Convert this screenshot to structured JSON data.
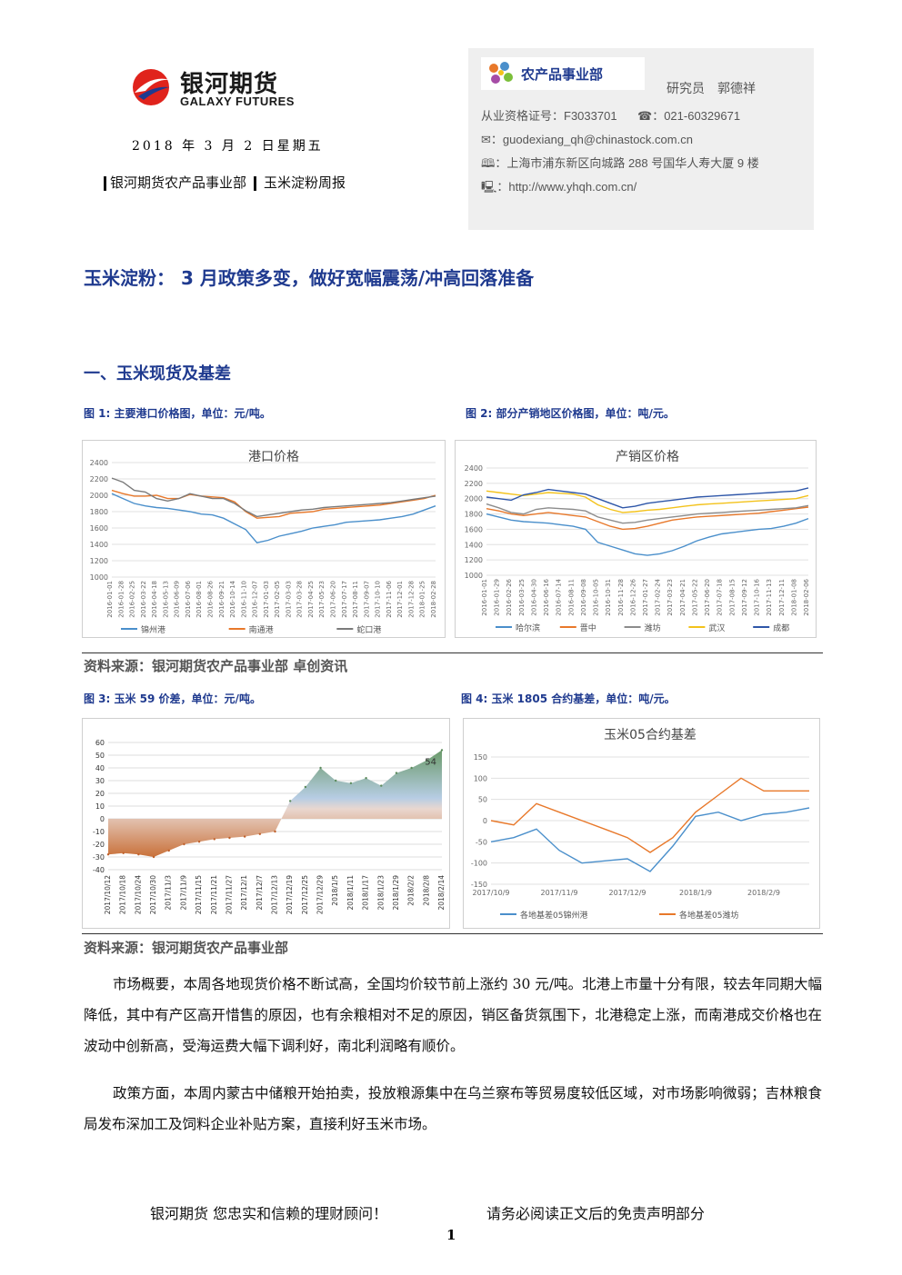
{
  "header": {
    "logo_cn": "银河期货",
    "logo_en": "GALAXY FUTURES",
    "date": "2018 年 3 月 2 日星期五",
    "dept": "银河期货农产品事业部",
    "report": "玉米淀粉周报"
  },
  "contact": {
    "dept_badge": "农产品事业部",
    "researcher": "研究员　郭德祥",
    "license": "从业资格证号：F3033701",
    "phone": "☎：021-60329671",
    "email": "✉：guodexiang_qh@chinastock.com.cn",
    "address": "🕮：上海市浦东新区向城路 288 号国华人寿大厦 9 楼",
    "website": "🖳：http://www.yhqh.com.cn/"
  },
  "title": "玉米淀粉：  3 月政策多变，做好宽幅震荡/冲高回落准备",
  "section1": "一、玉米现货及基差",
  "figures": {
    "fig1_caption": "图 1:  主要港口价格图，单位：元/吨。",
    "fig2_caption": "图 2:  部分产销地区价格图，单位：吨/元。",
    "fig3_caption": "图 3:  玉米 59 价差，单位：元/吨。",
    "fig4_caption": "图 4:  玉米 1805 合约基差，单位：吨/元。",
    "source1": "资料来源：银河期货农产品事业部  卓创资讯",
    "source2": "资料来源：银河期货农产品事业部"
  },
  "paragraphs": {
    "p1": "市场概要，本周各地现货价格不断试高，全国均价较节前上涨约 30 元/吨。北港上市量十分有限，较去年同期大幅降低，其中有产区高开惜售的原因，也有余粮相对不足的原因，销区备货氛围下，北港稳定上涨，而南港成交价格也在波动中创新高，受海运费大幅下调利好，南北利润略有顺价。",
    "p2": "政策方面，本周内蒙古中储粮开始拍卖，投放粮源集中在乌兰察布等贸易度较低区域，对市场影响微弱；吉林粮食局发布深加工及饲料企业补贴方案，直接利好玉米市场。"
  },
  "footer": {
    "slogan": "银河期货  您忠实和信赖的理财顾问！",
    "disclaimer": "请务必阅读正文后的免责声明部分",
    "page": "1"
  },
  "colors": {
    "title_blue": "#1f3a8f",
    "series_blue": "#4a8fcb",
    "series_orange": "#e8782a",
    "series_gray": "#8c8c8c",
    "series_yellow": "#f3c21b",
    "series_navy": "#2e56a8"
  },
  "chart_data": [
    {
      "type": "line",
      "title": "港口价格",
      "ylim": [
        1000,
        2400
      ],
      "yticks": [
        1000,
        1200,
        1400,
        1600,
        1800,
        2000,
        2200,
        2400
      ],
      "x": [
        "2016-01-01",
        "2016-01-28",
        "2016-02-25",
        "2016-03-22",
        "2016-04-18",
        "2016-05-13",
        "2016-06-09",
        "2016-07-06",
        "2016-08-01",
        "2016-08-26",
        "2016-09-21",
        "2016-10-14",
        "2016-11-10",
        "2016-12-07",
        "2017-01-03",
        "2017-02-05",
        "2017-03-03",
        "2017-03-28",
        "2017-04-25",
        "2017-05-23",
        "2017-06-20",
        "2017-07-17",
        "2017-08-11",
        "2017-09-07",
        "2017-10-10",
        "2017-11-06",
        "2017-12-01",
        "2017-12-28",
        "2018-01-25",
        "2018-02-28"
      ],
      "series": [
        {
          "name": "锦州港",
          "color": "#4a8fcb",
          "values": [
            2020,
            1960,
            1900,
            1870,
            1850,
            1840,
            1820,
            1800,
            1770,
            1760,
            1720,
            1650,
            1580,
            1420,
            1450,
            1500,
            1530,
            1560,
            1600,
            1620,
            1640,
            1670,
            1680,
            1690,
            1700,
            1720,
            1740,
            1770,
            1820,
            1870
          ]
        },
        {
          "name": "南通港",
          "color": "#e8782a",
          "values": [
            2060,
            2020,
            1990,
            1990,
            2000,
            1960,
            1960,
            2010,
            1990,
            1980,
            1970,
            1920,
            1800,
            1720,
            1730,
            1740,
            1780,
            1790,
            1800,
            1830,
            1840,
            1850,
            1860,
            1870,
            1880,
            1900,
            1920,
            1940,
            1960,
            2000
          ]
        },
        {
          "name": "蛇口港",
          "color": "#7a7a7a",
          "values": [
            2210,
            2160,
            2060,
            2040,
            1960,
            1930,
            1960,
            2020,
            1990,
            1960,
            1960,
            1900,
            1810,
            1740,
            1760,
            1780,
            1800,
            1820,
            1830,
            1850,
            1860,
            1870,
            1880,
            1890,
            1900,
            1910,
            1930,
            1950,
            1970,
            1990
          ]
        }
      ]
    },
    {
      "type": "line",
      "title": "产销区价格",
      "ylim": [
        1000,
        2400
      ],
      "yticks": [
        1000,
        1200,
        1400,
        1600,
        1800,
        2000,
        2200,
        2400
      ],
      "x": [
        "2016-01-01",
        "2016-01-29",
        "2016-02-26",
        "2016-03-25",
        "2016-04-30",
        "2016-06-16",
        "2016-07-14",
        "2016-08-11",
        "2016-09-08",
        "2016-10-05",
        "2016-10-31",
        "2016-11-28",
        "2016-12-26",
        "2017-01-27",
        "2017-02-24",
        "2017-03-23",
        "2017-04-21",
        "2017-05-22",
        "2017-06-20",
        "2017-07-18",
        "2017-08-15",
        "2017-09-12",
        "2017-10-16",
        "2017-11-13",
        "2017-12-11",
        "2018-01-08",
        "2018-02-06"
      ],
      "series": [
        {
          "name": "哈尔滨",
          "color": "#4a8fcb",
          "values": [
            1800,
            1760,
            1720,
            1700,
            1690,
            1680,
            1660,
            1640,
            1600,
            1430,
            1380,
            1330,
            1280,
            1260,
            1280,
            1320,
            1380,
            1450,
            1500,
            1540,
            1560,
            1580,
            1600,
            1610,
            1640,
            1680,
            1740
          ]
        },
        {
          "name": "晋中",
          "color": "#e8782a",
          "values": [
            1870,
            1840,
            1800,
            1780,
            1800,
            1820,
            1800,
            1780,
            1760,
            1700,
            1640,
            1600,
            1610,
            1640,
            1680,
            1720,
            1740,
            1760,
            1770,
            1780,
            1790,
            1800,
            1810,
            1830,
            1850,
            1870,
            1890
          ]
        },
        {
          "name": "潍坊",
          "color": "#8c8c8c",
          "values": [
            1930,
            1880,
            1820,
            1800,
            1860,
            1880,
            1870,
            1860,
            1840,
            1760,
            1720,
            1680,
            1690,
            1720,
            1740,
            1760,
            1780,
            1800,
            1810,
            1820,
            1830,
            1840,
            1850,
            1860,
            1870,
            1880,
            1910
          ]
        },
        {
          "name": "武汉",
          "color": "#f3c21b",
          "values": [
            2100,
            2080,
            2060,
            2040,
            2060,
            2080,
            2070,
            2060,
            2020,
            1920,
            1860,
            1820,
            1830,
            1850,
            1860,
            1880,
            1900,
            1920,
            1930,
            1940,
            1950,
            1960,
            1970,
            1980,
            1990,
            2000,
            2040
          ]
        },
        {
          "name": "成都",
          "color": "#2e56a8",
          "values": [
            2020,
            2000,
            1980,
            2050,
            2080,
            2120,
            2100,
            2080,
            2060,
            2000,
            1940,
            1880,
            1900,
            1940,
            1960,
            1980,
            2000,
            2020,
            2030,
            2040,
            2050,
            2060,
            2070,
            2080,
            2090,
            2100,
            2140
          ]
        }
      ]
    },
    {
      "type": "area",
      "title": "",
      "ylim": [
        -40,
        60
      ],
      "yticks": [
        -40,
        -30,
        -20,
        -10,
        0,
        10,
        20,
        30,
        40,
        50,
        60
      ],
      "x": [
        "2017/10/12",
        "2017/10/18",
        "2017/10/24",
        "2017/10/30",
        "2017/11/3",
        "2017/11/9",
        "2017/11/15",
        "2017/11/21",
        "2017/11/27",
        "2017/12/1",
        "2017/12/7",
        "2017/12/13",
        "2017/12/19",
        "2017/12/25",
        "2017/12/29",
        "2018/1/5",
        "2018/1/11",
        "2018/1/17",
        "2018/1/23",
        "2018/1/29",
        "2018/2/2",
        "2018/2/8",
        "2018/2/14"
      ],
      "values": [
        -28,
        -27,
        -28,
        -30,
        -25,
        -20,
        -18,
        -16,
        -15,
        -14,
        -12,
        -10,
        14,
        25,
        40,
        30,
        28,
        32,
        26,
        36,
        40,
        46,
        54
      ],
      "data_label": "54",
      "series": [
        {
          "values": [
            -28,
            -27,
            -28,
            -30,
            -25,
            -20,
            -18,
            -16,
            -15,
            -14,
            -12,
            -10,
            14,
            25,
            40,
            30,
            28,
            32,
            26,
            36,
            40,
            46,
            54
          ]
        }
      ]
    },
    {
      "type": "line",
      "title": "玉米05合约基差",
      "ylim": [
        -150,
        150
      ],
      "yticks": [
        -150,
        -100,
        -50,
        0,
        50,
        100,
        150
      ],
      "x": [
        "2017/10/9",
        "2017/10/19",
        "2017/10/29",
        "2017/11/9",
        "2017/11/19",
        "2017/11/29",
        "2017/12/9",
        "2017/12/19",
        "2017/12/29",
        "2018/1/9",
        "2018/1/19",
        "2018/1/29",
        "2018/2/9",
        "2018/2/19",
        "2018/2/28"
      ],
      "xticks": [
        "2017/10/9",
        "2017/11/9",
        "2017/12/9",
        "2018/1/9",
        "2018/2/9"
      ],
      "series": [
        {
          "name": "各地基差05锦州港",
          "color": "#4a8fcb",
          "values": [
            -50,
            -40,
            -20,
            -70,
            -100,
            -95,
            -90,
            -120,
            -60,
            10,
            20,
            0,
            15,
            20,
            30
          ]
        },
        {
          "name": "各地基差05潍坊",
          "color": "#e8782a",
          "values": [
            0,
            -10,
            40,
            20,
            0,
            -20,
            -40,
            -75,
            -40,
            20,
            60,
            100,
            70,
            70,
            70
          ]
        }
      ]
    }
  ]
}
